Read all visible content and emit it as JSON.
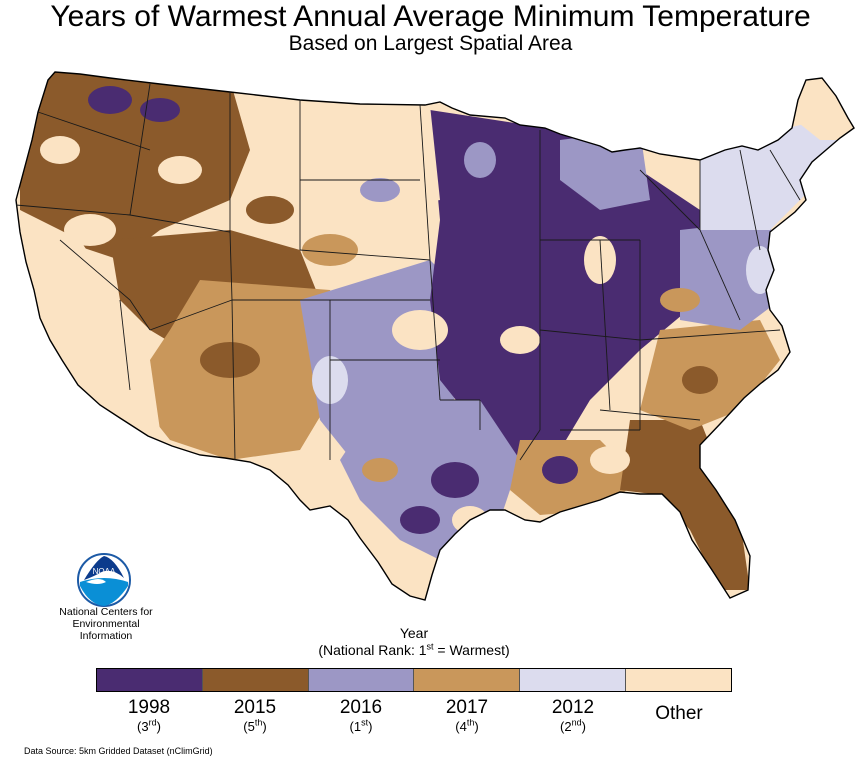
{
  "title": "Years of Warmest Annual Average Minimum Temperature",
  "subtitle": "Based on Largest Spatial Area",
  "legend": {
    "title": "Year",
    "rank_caption_prefix": "(National Rank: 1",
    "rank_caption_sup": "st",
    "rank_caption_suffix": " = Warmest)",
    "items": [
      {
        "year": "1998",
        "rank": "3",
        "suffix": "rd",
        "color": "#4a2c71"
      },
      {
        "year": "2015",
        "rank": "5",
        "suffix": "th",
        "color": "#8b5a2b"
      },
      {
        "year": "2016",
        "rank": "1",
        "suffix": "st",
        "color": "#9c97c5"
      },
      {
        "year": "2017",
        "rank": "4",
        "suffix": "th",
        "color": "#c9975b"
      },
      {
        "year": "2012",
        "rank": "2",
        "suffix": "nd",
        "color": "#dcdcee"
      },
      {
        "year": "Other",
        "color": "#fbe3c3"
      }
    ]
  },
  "logo": {
    "icon": "noaa-logo-icon",
    "emblem_text": "NOAA",
    "org_line1": "National Centers for",
    "org_line2": "Environmental",
    "org_line3": "Information"
  },
  "source": "Data Source: 5km Gridded Dataset (nClimGrid)",
  "colors": {
    "state_border": "#1a1a1a",
    "coast": "#000000"
  },
  "map_regions": [
    {
      "name": "pacific-northwest",
      "dominant_year": "2015"
    },
    {
      "name": "california-coast",
      "dominant_year": "Other"
    },
    {
      "name": "great-basin",
      "dominant_year": "2015"
    },
    {
      "name": "southwest",
      "dominant_year": "2017"
    },
    {
      "name": "northern-plains",
      "dominant_year": "Other"
    },
    {
      "name": "central-plains",
      "dominant_year": "2016"
    },
    {
      "name": "midwest",
      "dominant_year": "1998"
    },
    {
      "name": "great-lakes",
      "dominant_year": "1998"
    },
    {
      "name": "mississippi-valley",
      "dominant_year": "1998"
    },
    {
      "name": "texas",
      "dominant_year": "2016"
    },
    {
      "name": "gulf-coast",
      "dominant_year": "2017"
    },
    {
      "name": "florida",
      "dominant_year": "2015"
    },
    {
      "name": "carolinas",
      "dominant_year": "2017"
    },
    {
      "name": "mid-atlantic",
      "dominant_year": "2016"
    },
    {
      "name": "new-england",
      "dominant_year": "2012"
    },
    {
      "name": "maine",
      "dominant_year": "Other"
    }
  ]
}
